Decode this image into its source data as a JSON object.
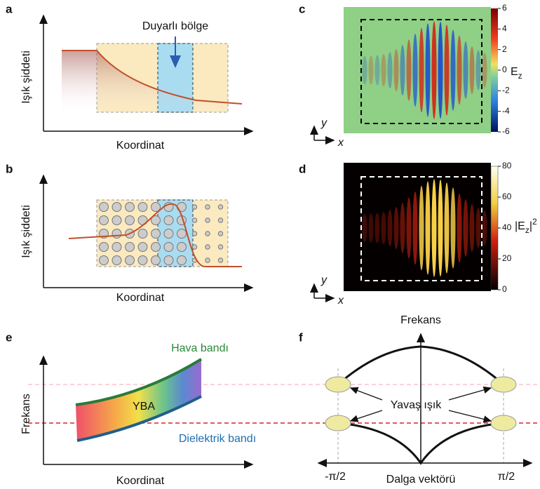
{
  "panels": {
    "a": {
      "label": "a",
      "y_label": "Işık şiddeti",
      "x_label": "Koordinat",
      "annotation": "Duyarlı bölge"
    },
    "b": {
      "label": "b",
      "y_label": "Işık şiddeti",
      "x_label": "Koordinat"
    },
    "c": {
      "label": "c",
      "colorbar_label": "E",
      "colorbar_label_sub": "z",
      "colorbar_ticks": [
        6,
        4,
        2,
        0,
        -2,
        -4,
        -6
      ],
      "axis_y": "y",
      "axis_x": "x"
    },
    "d": {
      "label": "d",
      "colorbar_label": "|E",
      "colorbar_label_sub": "z",
      "colorbar_label_end": "|",
      "colorbar_label_sup": "2",
      "colorbar_ticks": [
        80,
        60,
        40,
        20,
        0
      ],
      "axis_y": "y",
      "axis_x": "x"
    },
    "e": {
      "label": "e",
      "y_label": "Frekans",
      "x_label": "Koordinat",
      "upper_band": "Hava bandı",
      "lower_band": "Dielektrik bandı",
      "gap": "YBA"
    },
    "f": {
      "label": "f",
      "y_label": "Frekans",
      "x_label": "Dalga vektörü",
      "left_tick": "-π/2",
      "right_tick": "π/2",
      "annotation": "Yavaş ışık"
    }
  }
}
